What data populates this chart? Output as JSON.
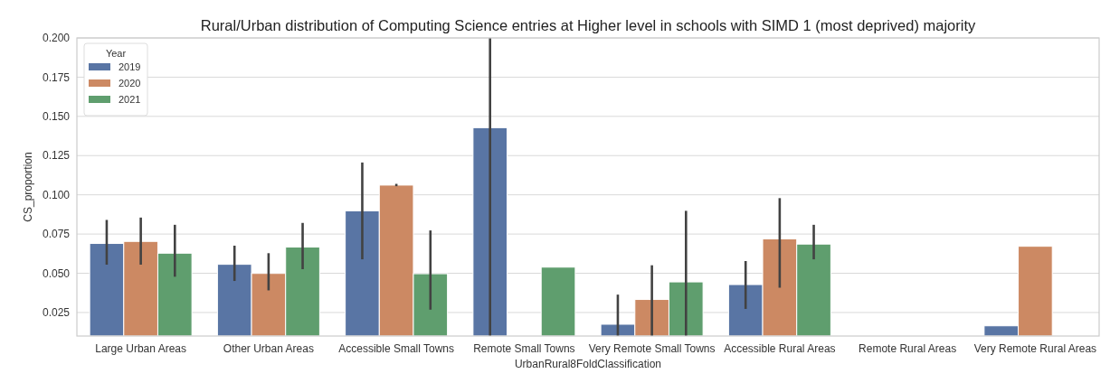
{
  "chart_data": {
    "type": "bar",
    "title": "Rural/Urban distribution of Computing Science entries at Higher level in schools with SIMD 1 (most deprived) majority",
    "xlabel": "UrbanRural8FoldClassification",
    "ylabel": "CS_proportion",
    "legend_title": "Year",
    "legend": "top left",
    "grid": "y",
    "categories": [
      "Large Urban Areas",
      "Other Urban Areas",
      "Accessible Small Towns",
      "Remote Small Towns",
      "Very Remote Small Towns",
      "Accessible Rural Areas",
      "Remote Rural Areas",
      "Very Remote Rural Areas"
    ],
    "ylim": [
      0.01,
      0.2
    ],
    "yticks": [
      {
        "value": 0.025,
        "label": "0.025"
      },
      {
        "value": 0.05,
        "label": "0.050"
      },
      {
        "value": 0.075,
        "label": "0.075"
      },
      {
        "value": 0.1,
        "label": "0.100"
      },
      {
        "value": 0.125,
        "label": "0.125"
      },
      {
        "value": 0.15,
        "label": "0.150"
      },
      {
        "value": 0.175,
        "label": "0.175"
      },
      {
        "value": 0.2,
        "label": "0.200"
      }
    ],
    "series": [
      {
        "name": "2019",
        "color": "#5975a4",
        "values": [
          0.069,
          0.0557,
          0.0898,
          0.1428,
          0.0175,
          0.0428,
          null,
          0.0165
        ],
        "errors": [
          [
            0.0555,
            0.084
          ],
          [
            0.0451,
            0.0676
          ],
          [
            0.0589,
            0.1206
          ],
          [
            0.01,
            0.2
          ],
          [
            0.01,
            0.0364
          ],
          [
            0.0273,
            0.0578
          ],
          null,
          null
        ]
      },
      {
        "name": "2020",
        "color": "#cc8963",
        "values": [
          0.0703,
          0.0499,
          0.1062,
          null,
          0.0333,
          0.0719,
          null,
          0.0672
        ],
        "errors": [
          [
            0.0555,
            0.0855
          ],
          [
            0.0391,
            0.0628
          ],
          [
            0.1055,
            0.107
          ],
          null,
          [
            0.01,
            0.0551
          ],
          [
            0.0408,
            0.0979
          ],
          null,
          null
        ]
      },
      {
        "name": "2021",
        "color": "#5f9e6e",
        "values": [
          0.0628,
          0.0667,
          0.0497,
          0.0539,
          0.0445,
          0.0686,
          null,
          null
        ],
        "errors": [
          [
            0.0478,
            0.0809
          ],
          [
            0.0526,
            0.0821
          ],
          [
            0.0268,
            0.0773
          ],
          null,
          [
            0.01,
            0.0898
          ],
          [
            0.0589,
            0.0809
          ],
          null,
          null
        ]
      }
    ]
  }
}
